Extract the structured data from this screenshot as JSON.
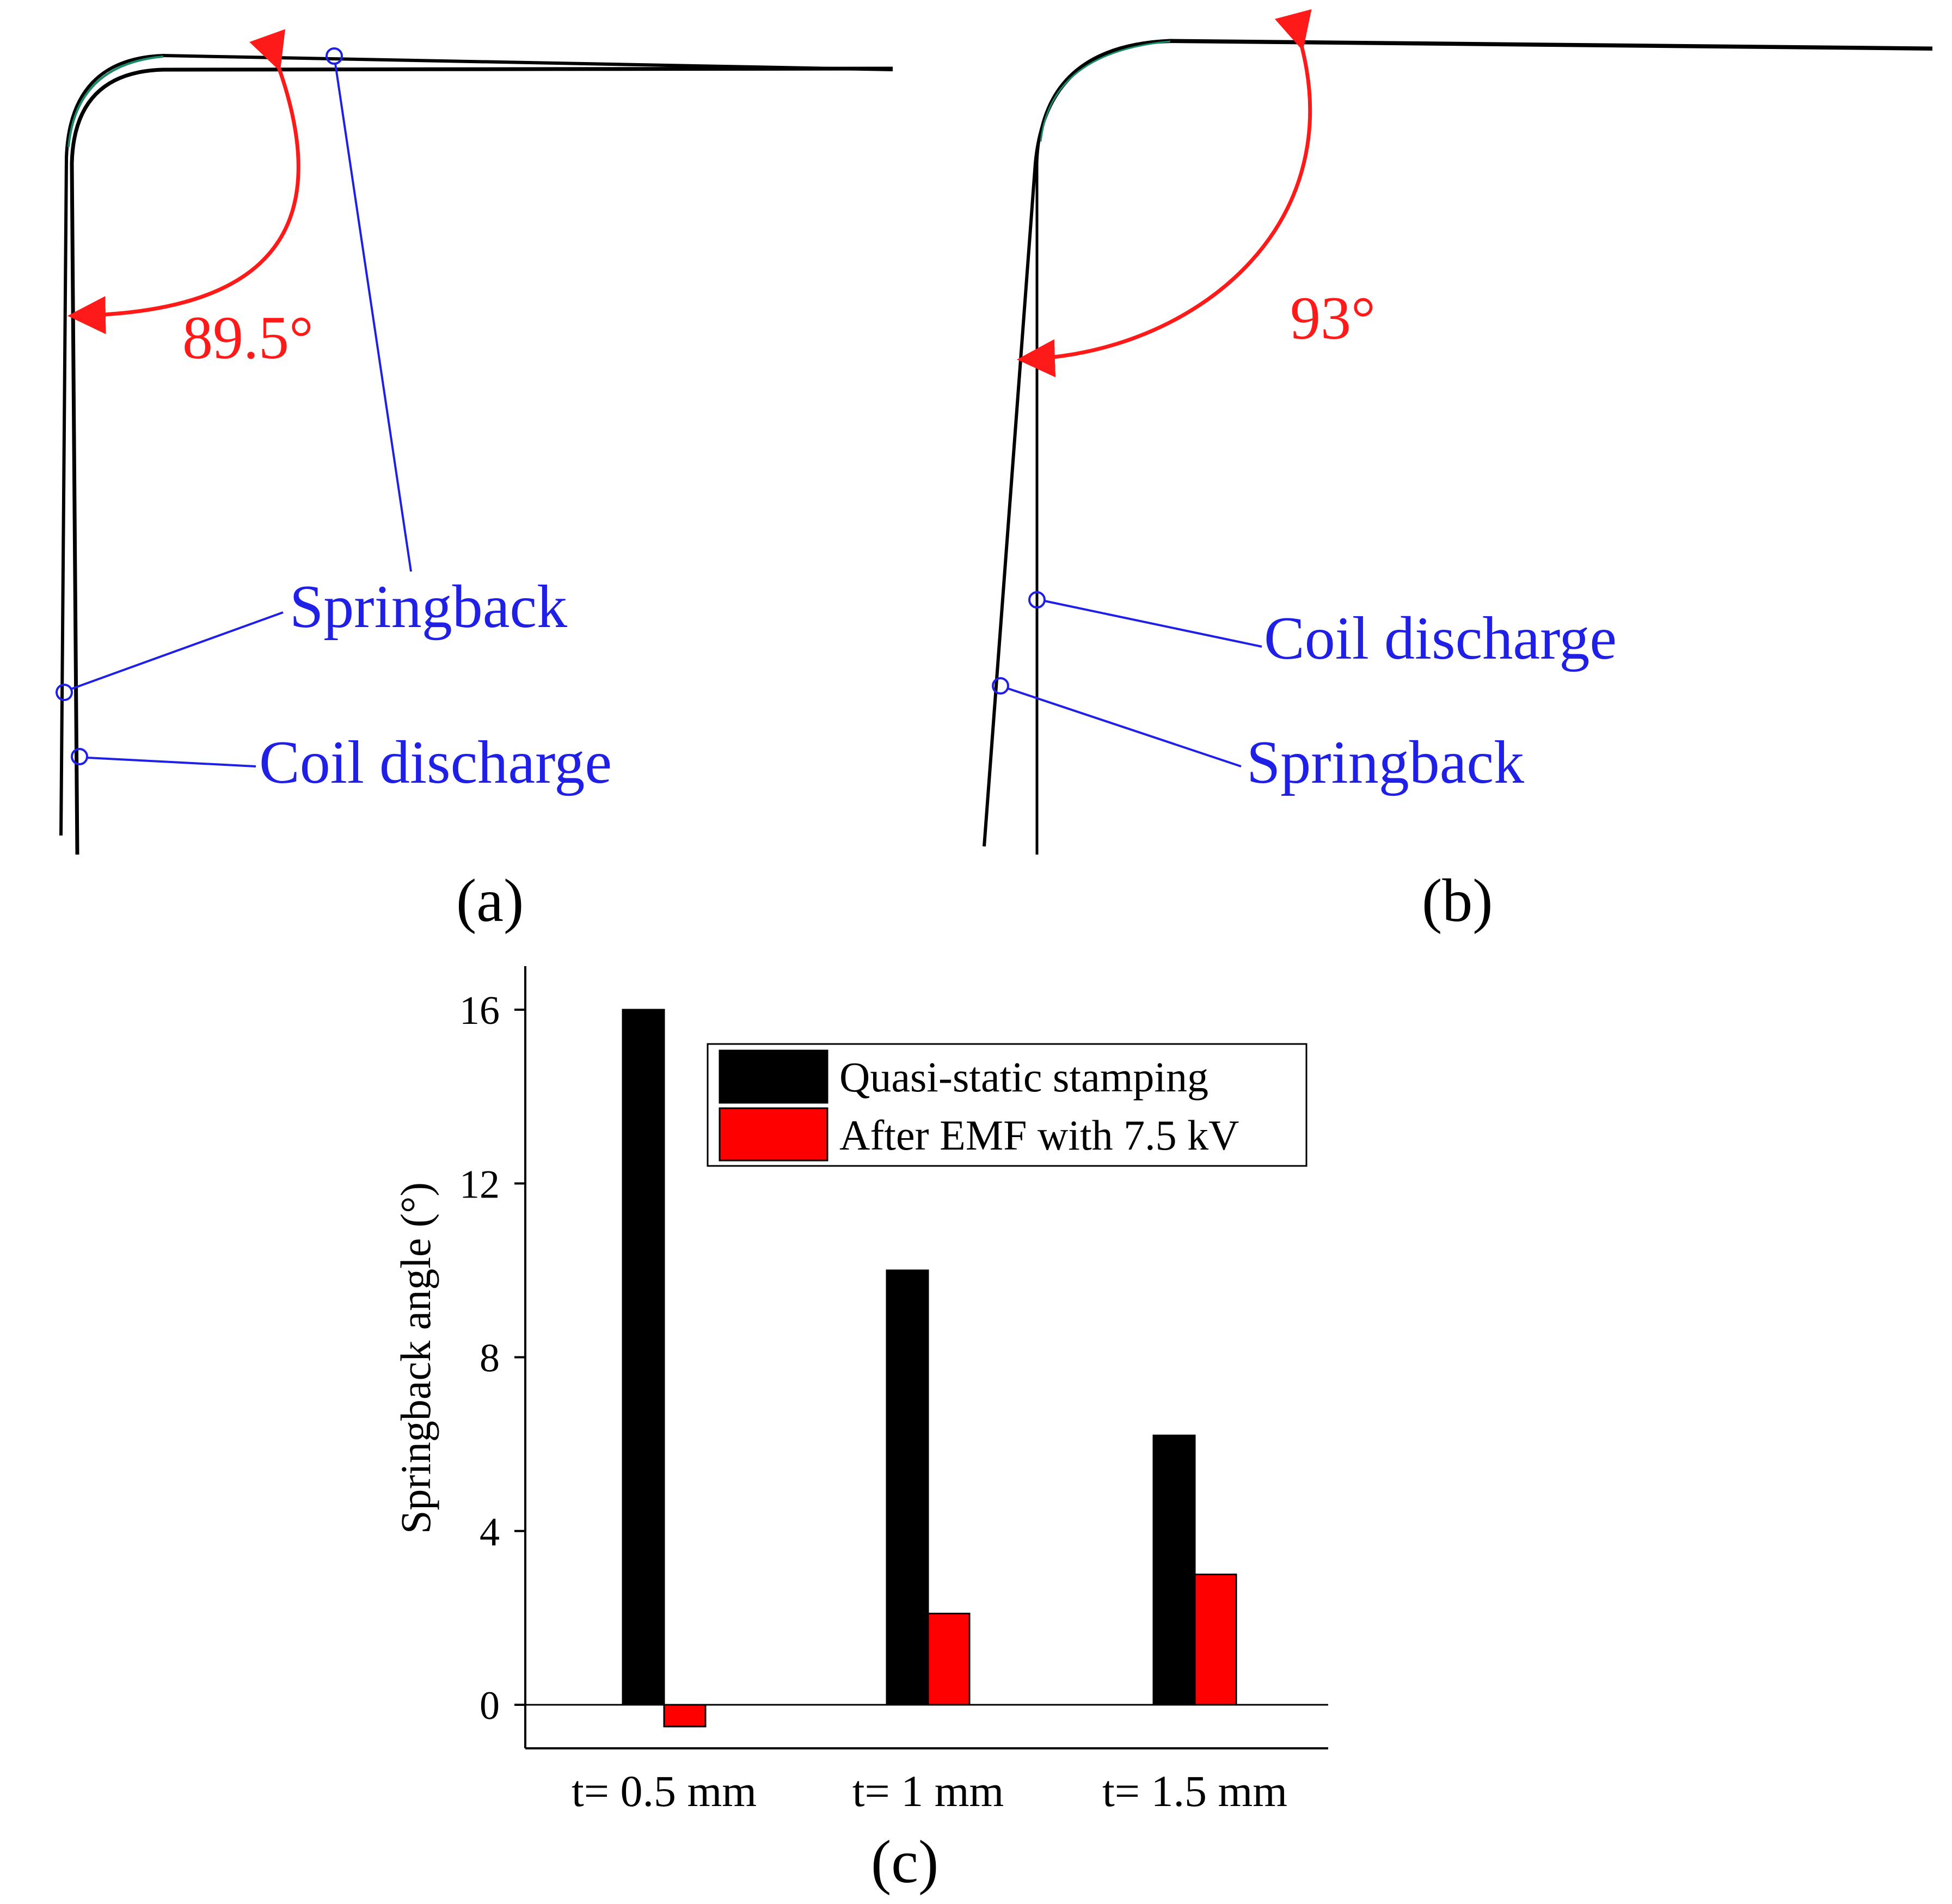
{
  "colors": {
    "annotation_blue": "#1f1fe6",
    "angle_red": "#ff1a1a",
    "series_black": "#000000",
    "series_red": "#ff0000"
  },
  "panel_a": {
    "label": "(a)",
    "angle": "89.5°",
    "springback_label": "Springback",
    "coil_label": "Coil discharge"
  },
  "panel_b": {
    "label": "(b)",
    "angle": "93°",
    "springback_label": "Springback",
    "coil_label": "Coil discharge"
  },
  "panel_c": {
    "label": "(c)"
  },
  "chart_data": {
    "type": "bar",
    "title": "",
    "xlabel": "",
    "ylabel": "Springback angle (°)",
    "categories": [
      "t= 0.5 mm",
      "t= 1 mm",
      "t= 1.5 mm"
    ],
    "series": [
      {
        "name": "Quasi-static stamping",
        "color": "#000000",
        "values": [
          16,
          10,
          6.2
        ]
      },
      {
        "name": "After EMF with 7.5 kV",
        "color": "#ff0000",
        "values": [
          -0.5,
          2.1,
          3.0
        ]
      }
    ],
    "ylim": [
      -1,
      17
    ],
    "yticks": [
      0,
      4,
      8,
      12,
      16
    ],
    "ytick_labels": [
      "0",
      "4",
      "8",
      "12",
      "16"
    ],
    "legend_position": "top-right",
    "grid": false
  }
}
